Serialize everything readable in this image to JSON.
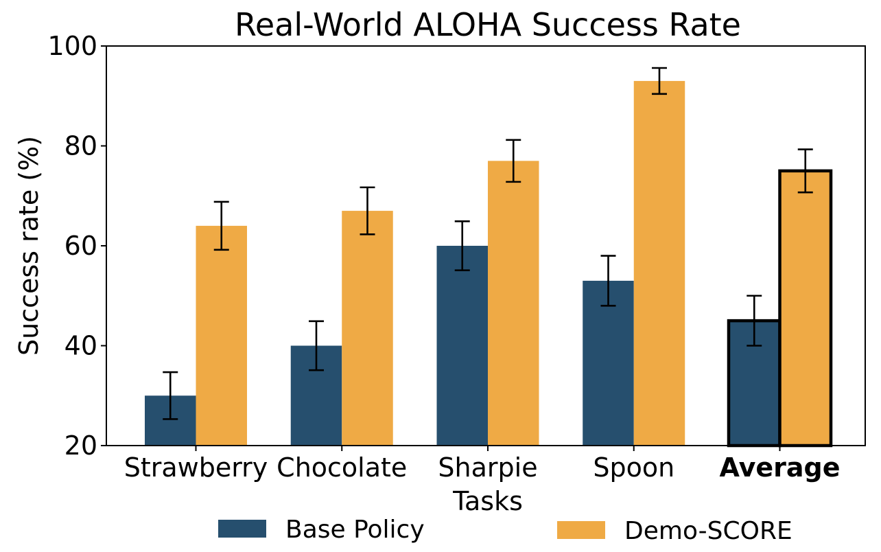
{
  "chart_data": {
    "type": "bar",
    "title": "Real-World ALOHA Success Rate",
    "xlabel": "Tasks",
    "ylabel": "Success rate (%)",
    "ylim": [
      20,
      100
    ],
    "yticks": [
      "20",
      "40",
      "60",
      "80",
      "100"
    ],
    "categories": [
      "Strawberry",
      "Chocolate",
      "Sharpie",
      "Spoon",
      "Average"
    ],
    "emphasized_category": "Average",
    "series": [
      {
        "name": "Base Policy",
        "color": "#264f6e",
        "values": [
          30,
          40,
          60,
          53,
          45
        ],
        "err_low": [
          25.3,
          35.1,
          55.1,
          48.0,
          40.0
        ],
        "err_high": [
          34.7,
          44.9,
          64.9,
          58.0,
          50.0
        ]
      },
      {
        "name": "Demo-SCORE",
        "color": "#efaa45",
        "values": [
          64,
          67,
          77,
          93,
          75
        ],
        "err_low": [
          59.2,
          62.3,
          72.8,
          90.4,
          70.7
        ],
        "err_high": [
          68.8,
          71.7,
          81.2,
          95.6,
          79.3
        ]
      }
    ],
    "legend_position": "bottom",
    "grid": false
  }
}
